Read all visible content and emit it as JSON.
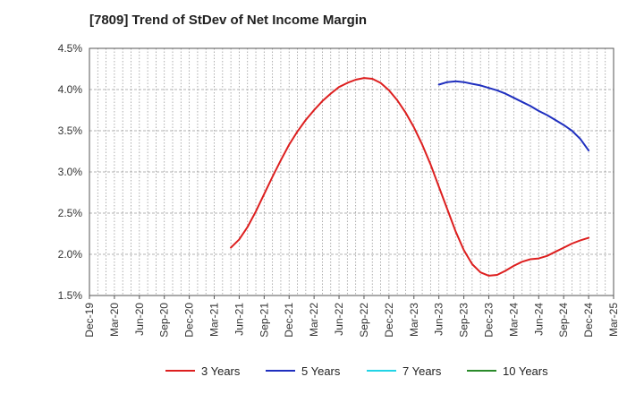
{
  "chart_data": {
    "type": "line",
    "title": "[7809]  Trend of StDev of Net Income Margin",
    "x_ticks": [
      "Dec-19",
      "Mar-20",
      "Jun-20",
      "Sep-20",
      "Dec-20",
      "Mar-21",
      "Jun-21",
      "Sep-21",
      "Dec-21",
      "Mar-22",
      "Jun-22",
      "Sep-22",
      "Dec-22",
      "Mar-23",
      "Jun-23",
      "Sep-23",
      "Dec-23",
      "Mar-24",
      "Jun-24",
      "Sep-24",
      "Dec-24",
      "Mar-25"
    ],
    "y_ticks": [
      "1.5%",
      "2.0%",
      "2.5%",
      "3.0%",
      "3.5%",
      "4.0%",
      "4.5%"
    ],
    "ylim": [
      1.5,
      4.5
    ],
    "grid": true,
    "legend_position": "bottom",
    "series": [
      {
        "name": "3 Years",
        "color": "#dd1f1f",
        "x": [
          "2021-05",
          "2021-06",
          "2021-07",
          "2021-08",
          "2021-09",
          "2021-10",
          "2021-11",
          "2021-12",
          "2022-01",
          "2022-02",
          "2022-03",
          "2022-04",
          "2022-05",
          "2022-06",
          "2022-07",
          "2022-08",
          "2022-09",
          "2022-10",
          "2022-11",
          "2022-12",
          "2023-01",
          "2023-02",
          "2023-03",
          "2023-04",
          "2023-05",
          "2023-06",
          "2023-07",
          "2023-08",
          "2023-09",
          "2023-10",
          "2023-11",
          "2023-12",
          "2024-01",
          "2024-02",
          "2024-03",
          "2024-04",
          "2024-05",
          "2024-06",
          "2024-07",
          "2024-08",
          "2024-09",
          "2024-10",
          "2024-11",
          "2024-12"
        ],
        "values": [
          2.08,
          2.18,
          2.33,
          2.52,
          2.73,
          2.94,
          3.14,
          3.33,
          3.49,
          3.63,
          3.75,
          3.86,
          3.95,
          4.03,
          4.08,
          4.12,
          4.14,
          4.13,
          4.08,
          3.99,
          3.87,
          3.72,
          3.54,
          3.33,
          3.09,
          2.82,
          2.55,
          2.28,
          2.05,
          1.88,
          1.78,
          1.74,
          1.75,
          1.8,
          1.86,
          1.91,
          1.94,
          1.95,
          1.98,
          2.03,
          2.08,
          2.13,
          2.17,
          2.2
        ]
      },
      {
        "name": "5 Years",
        "color": "#1f2fbf",
        "x": [
          "2023-06",
          "2023-07",
          "2023-08",
          "2023-09",
          "2023-10",
          "2023-11",
          "2023-12",
          "2024-01",
          "2024-02",
          "2024-03",
          "2024-04",
          "2024-05",
          "2024-06",
          "2024-07",
          "2024-08",
          "2024-09",
          "2024-10",
          "2024-11",
          "2024-12"
        ],
        "values": [
          4.06,
          4.09,
          4.1,
          4.09,
          4.07,
          4.05,
          4.02,
          3.99,
          3.95,
          3.9,
          3.85,
          3.8,
          3.74,
          3.69,
          3.63,
          3.57,
          3.5,
          3.4,
          3.26
        ]
      },
      {
        "name": "7 Years",
        "color": "#22d4e6",
        "x": [],
        "values": []
      },
      {
        "name": "10 Years",
        "color": "#2a8a2a",
        "x": [],
        "values": []
      }
    ]
  }
}
